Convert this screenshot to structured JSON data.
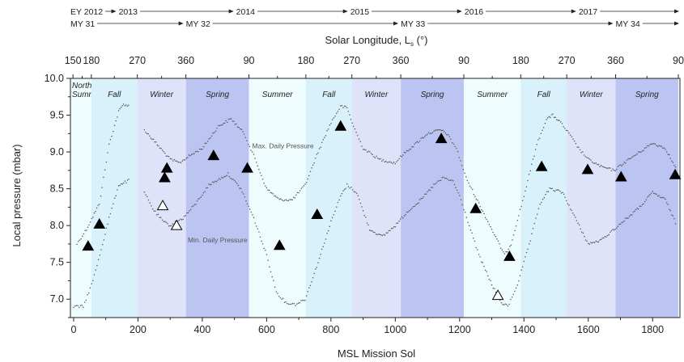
{
  "chart_data": {
    "type": "scatter",
    "xlabel": "MSL Mission Sol",
    "ylabel": "Local pressure (mbar)",
    "top_axis_label": "Solar Longitude, L",
    "top_axis_label_sub": "s",
    "top_axis_label_unit": " (°)",
    "xlim": [
      -10,
      1885
    ],
    "ylim": [
      6.75,
      10.0
    ],
    "x_ticks": [
      0,
      200,
      400,
      600,
      800,
      1000,
      1200,
      1400,
      1600,
      1800
    ],
    "y_ticks": [
      7.0,
      7.5,
      8.0,
      8.5,
      9.0,
      9.5,
      10.0
    ],
    "y_tick_labels": [
      "7.0",
      "7.5",
      "8.0",
      "8.5",
      "9.0",
      "9.5",
      "10.0"
    ],
    "ls_ticks": [
      {
        "label": "150",
        "sol": -2
      },
      {
        "label": "180",
        "sol": 55
      },
      {
        "label": "270",
        "sol": 198
      },
      {
        "label": "360",
        "sol": 349
      },
      {
        "label": "90",
        "sol": 545
      },
      {
        "label": "180",
        "sol": 722
      },
      {
        "label": "270",
        "sol": 865
      },
      {
        "label": "360",
        "sol": 1017
      },
      {
        "label": "90",
        "sol": 1213
      },
      {
        "label": "180",
        "sol": 1390
      },
      {
        "label": "270",
        "sol": 1533
      },
      {
        "label": "360",
        "sol": 1685
      },
      {
        "label": "90",
        "sol": 1880
      }
    ],
    "seasons": [
      {
        "label": "Northern",
        "label2": "Summer",
        "start": -10,
        "end": 55,
        "color": "#eefcfd"
      },
      {
        "label": "Fall",
        "start": 55,
        "end": 198,
        "color": "#d9f1fb"
      },
      {
        "label": "Winter",
        "start": 198,
        "end": 349,
        "color": "#dfe3fa"
      },
      {
        "label": "Spring",
        "start": 349,
        "end": 545,
        "color": "#bcc5f2"
      },
      {
        "label": "Summer",
        "start": 545,
        "end": 722,
        "color": "#eefcfd"
      },
      {
        "label": "Fall",
        "start": 722,
        "end": 865,
        "color": "#d9f1fb"
      },
      {
        "label": "Winter",
        "start": 865,
        "end": 1017,
        "color": "#dfe3fa"
      },
      {
        "label": "Spring",
        "start": 1017,
        "end": 1213,
        "color": "#bcc5f2"
      },
      {
        "label": "Summer",
        "start": 1213,
        "end": 1390,
        "color": "#eefcfd"
      },
      {
        "label": "Fall",
        "start": 1390,
        "end": 1533,
        "color": "#d9f1fb"
      },
      {
        "label": "Winter",
        "start": 1533,
        "end": 1685,
        "color": "#dfe3fa"
      },
      {
        "label": "Spring",
        "start": 1685,
        "end": 1880,
        "color": "#bcc5f2"
      }
    ],
    "earth_years": [
      {
        "label": "EY 2012",
        "sol": -10
      },
      {
        "label": "2013",
        "sol": 140
      },
      {
        "label": "2014",
        "sol": 505
      },
      {
        "label": "2015",
        "sol": 860
      },
      {
        "label": "2016",
        "sol": 1215
      },
      {
        "label": "2017",
        "sol": 1570
      }
    ],
    "mars_years": [
      {
        "label": "MY 31",
        "sol": -10
      },
      {
        "label": "MY 32",
        "sol": 349
      },
      {
        "label": "MY 33",
        "sol": 1017
      },
      {
        "label": "MY 34",
        "sol": 1685
      }
    ],
    "series": [
      {
        "name": "Max. Daily Pressure",
        "x": [
          10,
          40,
          80,
          110,
          140,
          155,
          175,
          200,
          220,
          260,
          300,
          330,
          350,
          400,
          450,
          490,
          530,
          560,
          600,
          640,
          680,
          720,
          760,
          800,
          830,
          850,
          870,
          900,
          950,
          1000,
          1020,
          1060,
          1100,
          1140,
          1160,
          1190,
          1220,
          1260,
          1300,
          1340,
          1360,
          1400,
          1440,
          1470,
          1490,
          1510,
          1540,
          1570,
          1600,
          1640,
          1680,
          1720,
          1760,
          1800,
          1840,
          1875
        ],
        "y": [
          7.75,
          7.95,
          8.3,
          9.1,
          9.55,
          9.65,
          9.62,
          null,
          9.3,
          9.1,
          8.9,
          8.85,
          8.92,
          9.05,
          9.35,
          9.45,
          9.25,
          8.95,
          8.5,
          8.35,
          8.35,
          8.55,
          9.0,
          9.4,
          9.62,
          9.6,
          9.35,
          9.05,
          8.9,
          8.85,
          8.95,
          9.1,
          9.25,
          9.3,
          9.25,
          9.05,
          8.65,
          8.3,
          7.95,
          7.6,
          7.75,
          8.4,
          9.1,
          9.45,
          9.5,
          9.42,
          9.25,
          9.05,
          8.9,
          8.8,
          8.75,
          8.88,
          9.0,
          9.12,
          9.05,
          8.75
        ]
      },
      {
        "name": "Min. Daily Pressure",
        "x": [
          0,
          30,
          60,
          90,
          110,
          140,
          175,
          200,
          220,
          250,
          280,
          300,
          340,
          380,
          420,
          460,
          480,
          520,
          560,
          600,
          630,
          660,
          690,
          720,
          760,
          800,
          830,
          850,
          880,
          900,
          920,
          960,
          1000,
          1040,
          1080,
          1120,
          1150,
          1180,
          1200,
          1230,
          1260,
          1300,
          1330,
          1350,
          1380,
          1420,
          1450,
          1480,
          1520,
          1560,
          1600,
          1640,
          1680,
          1720,
          1760,
          1800,
          1840,
          1875
        ],
        "y": [
          6.9,
          6.9,
          7.25,
          7.75,
          8.1,
          8.55,
          8.62,
          null,
          8.45,
          8.2,
          8.05,
          8.0,
          8.1,
          8.3,
          8.55,
          8.65,
          8.7,
          8.5,
          8.1,
          7.6,
          7.1,
          6.95,
          6.93,
          7.0,
          7.5,
          8.05,
          8.4,
          8.55,
          8.45,
          8.2,
          7.95,
          7.85,
          8.0,
          8.2,
          8.35,
          8.55,
          8.65,
          8.6,
          8.4,
          8.0,
          7.6,
          7.2,
          6.95,
          6.9,
          7.2,
          7.8,
          8.3,
          8.5,
          8.45,
          8.1,
          7.75,
          7.8,
          7.95,
          8.1,
          8.25,
          8.45,
          8.35,
          8.0
        ]
      }
    ],
    "markers_filled": [
      [
        45,
        7.72
      ],
      [
        80,
        8.02
      ],
      [
        283,
        8.65
      ],
      [
        290,
        8.78
      ],
      [
        435,
        8.95
      ],
      [
        540,
        8.78
      ],
      [
        640,
        7.73
      ],
      [
        757,
        8.15
      ],
      [
        830,
        9.35
      ],
      [
        1143,
        9.18
      ],
      [
        1250,
        8.23
      ],
      [
        1355,
        7.58
      ],
      [
        1455,
        8.8
      ],
      [
        1598,
        8.76
      ],
      [
        1702,
        8.66
      ],
      [
        1870,
        8.69
      ]
    ],
    "markers_open": [
      [
        277,
        8.27
      ],
      [
        320,
        8.0
      ],
      [
        1319,
        7.05
      ]
    ],
    "annotations": [
      {
        "text": "Max. Daily Pressure",
        "x": 555,
        "y": 9.05
      },
      {
        "text": "Min. Daily Pressure",
        "x": 355,
        "y": 7.77
      }
    ]
  }
}
